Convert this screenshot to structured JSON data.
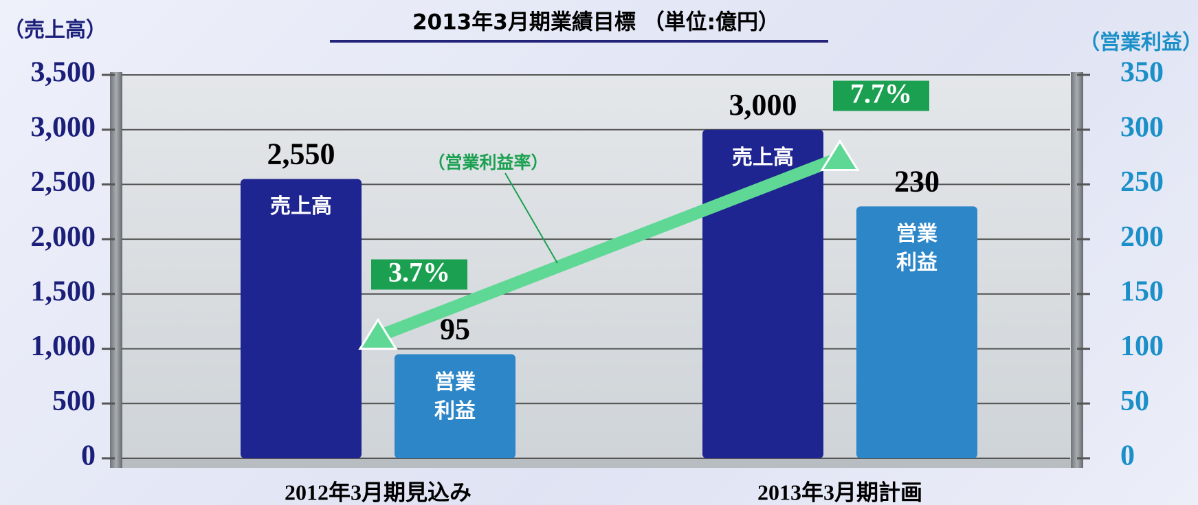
{
  "chart_data": {
    "type": "bar",
    "title": "2013年3月期業績目標 （単位:億円）",
    "y_label": "（売上高）",
    "y2_label": "（営業利益）",
    "categories": [
      "2012年3月期見込み",
      "2013年3月期計画"
    ],
    "series": [
      {
        "name": "売上高",
        "color": "#1e2590",
        "values": [
          2550,
          3000
        ],
        "value_labels": [
          "2,550",
          "3,000"
        ],
        "axis": "y"
      },
      {
        "name": "営業利益",
        "color": "#2d86c8",
        "values": [
          95,
          230
        ],
        "axis": "y2"
      },
      {
        "name": "（営業利益率）",
        "type": "line",
        "color": "#5fd896",
        "values": [
          3.7,
          7.7
        ],
        "value_labels": [
          "3.7%",
          "7.7%"
        ]
      }
    ],
    "ylim": [
      0,
      3500
    ],
    "yticks": [
      0,
      {
        "value": 500,
        "label": "500"
      },
      {
        "value": 1000,
        "label": "1,000"
      },
      {
        "value": 1500,
        "label": "1,500"
      },
      {
        "value": 2000,
        "label": "2,000"
      },
      {
        "value": 2500,
        "label": "2,500"
      },
      {
        "value": 3000,
        "label": "3,000"
      },
      {
        "value": 3500,
        "label": "3,500"
      }
    ],
    "y2lim": [
      0,
      350
    ],
    "y2ticks": [
      0,
      50,
      100,
      150,
      200,
      250,
      300,
      350
    ],
    "grid": true
  }
}
